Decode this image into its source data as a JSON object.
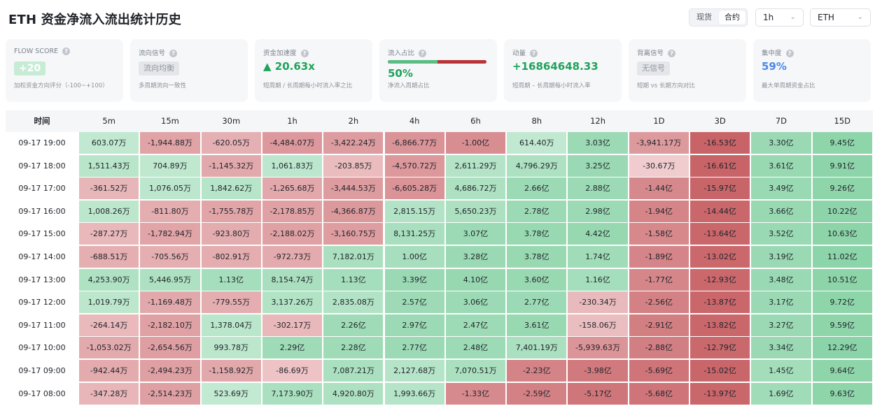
{
  "header": {
    "title": "ETH 资金净流入流出统计历史",
    "segment": [
      "现货",
      "合约"
    ],
    "active_segment": "合约",
    "timeframe": "1h",
    "symbol": "ETH"
  },
  "cards": [
    {
      "label": "FLOW SCORE",
      "value": "+20",
      "sub": "加权资金方向评分（-100~+100）"
    },
    {
      "label": "流向信号",
      "value": "流向均衡",
      "sub": "多周期流向一致性"
    },
    {
      "label": "资金加速度",
      "value": "▲ 20.63x",
      "sub": "短周期 / 长周期每小时流入率之比"
    },
    {
      "label": "流入占比",
      "value": "50%",
      "sub": "净流入周期占比",
      "bar_fraction": 0.5
    },
    {
      "label": "动量",
      "value": "+16864648.33",
      "sub": "短周期 – 长周期每小时流入率"
    },
    {
      "label": "背离信号",
      "value": "无信号",
      "sub": "短期 vs 长期方向对比"
    },
    {
      "label": "集中度",
      "value": "59%",
      "sub": "最大单周期资金占比"
    }
  ],
  "table": {
    "time_header": "时间",
    "columns": [
      "5m",
      "15m",
      "30m",
      "1h",
      "2h",
      "4h",
      "6h",
      "8h",
      "12h",
      "1D",
      "3D",
      "7D",
      "15D"
    ],
    "rows": [
      {
        "time": "09-17 19:00",
        "values": [
          "603.07万",
          "-1,944.88万",
          "-620.05万",
          "-4,484.07万",
          "-3,422.24万",
          "-6,866.77万",
          "-1.00亿",
          "614.40万",
          "3.03亿",
          "-3,941.17万",
          "-16.53亿",
          "3.30亿",
          "9.45亿"
        ]
      },
      {
        "time": "09-17 18:00",
        "values": [
          "1,511.43万",
          "704.89万",
          "-1,145.32万",
          "1,061.83万",
          "-203.85万",
          "-4,570.72万",
          "2,611.29万",
          "4,796.29万",
          "3.25亿",
          "-30.67万",
          "-16.61亿",
          "3.61亿",
          "9.91亿"
        ]
      },
      {
        "time": "09-17 17:00",
        "values": [
          "-361.52万",
          "1,076.05万",
          "1,842.62万",
          "-1,265.68万",
          "-3,444.53万",
          "-6,605.28万",
          "4,686.72万",
          "2.66亿",
          "2.88亿",
          "-1.44亿",
          "-15.97亿",
          "3.49亿",
          "9.26亿"
        ]
      },
      {
        "time": "09-17 16:00",
        "values": [
          "1,008.26万",
          "-811.80万",
          "-1,755.78万",
          "-2,178.85万",
          "-4,366.87万",
          "2,815.15万",
          "5,650.23万",
          "2.78亿",
          "2.98亿",
          "-1.94亿",
          "-14.44亿",
          "3.66亿",
          "10.22亿"
        ]
      },
      {
        "time": "09-17 15:00",
        "values": [
          "-287.27万",
          "-1,782.94万",
          "-923.80万",
          "-2,188.02万",
          "-3,160.75万",
          "8,131.25万",
          "3.07亿",
          "3.78亿",
          "4.42亿",
          "-1.58亿",
          "-13.64亿",
          "3.52亿",
          "10.63亿"
        ]
      },
      {
        "time": "09-17 14:00",
        "values": [
          "-688.51万",
          "-705.56万",
          "-802.91万",
          "-972.73万",
          "7,182.01万",
          "1.00亿",
          "3.28亿",
          "3.78亿",
          "1.74亿",
          "-1.89亿",
          "-13.02亿",
          "3.19亿",
          "11.02亿"
        ]
      },
      {
        "time": "09-17 13:00",
        "values": [
          "4,253.90万",
          "5,446.95万",
          "1.13亿",
          "8,154.74万",
          "1.13亿",
          "3.39亿",
          "4.10亿",
          "3.60亿",
          "1.16亿",
          "-1.77亿",
          "-12.93亿",
          "3.48亿",
          "10.51亿"
        ]
      },
      {
        "time": "09-17 12:00",
        "values": [
          "1,019.79万",
          "-1,169.48万",
          "-779.55万",
          "3,137.26万",
          "2,835.08万",
          "2.57亿",
          "3.06亿",
          "2.77亿",
          "-230.34万",
          "-2.56亿",
          "-13.87亿",
          "3.17亿",
          "9.72亿"
        ]
      },
      {
        "time": "09-17 11:00",
        "values": [
          "-264.14万",
          "-2,182.10万",
          "1,378.04万",
          "-302.17万",
          "2.26亿",
          "2.97亿",
          "2.47亿",
          "3.61亿",
          "-158.06万",
          "-2.91亿",
          "-13.82亿",
          "3.27亿",
          "9.59亿"
        ]
      },
      {
        "time": "09-17 10:00",
        "values": [
          "-1,053.02万",
          "-2,654.56万",
          "993.78万",
          "2.29亿",
          "2.28亿",
          "2.77亿",
          "2.48亿",
          "7,401.19万",
          "-5,939.63万",
          "-2.88亿",
          "-12.79亿",
          "3.34亿",
          "12.29亿"
        ]
      },
      {
        "time": "09-17 09:00",
        "values": [
          "-942.44万",
          "-2,494.23万",
          "-1,158.92万",
          "-86.69万",
          "7,087.21万",
          "2,127.68万",
          "7,070.51万",
          "-2.23亿",
          "-3.98亿",
          "-5.69亿",
          "-15.02亿",
          "1.45亿",
          "9.64亿"
        ]
      },
      {
        "time": "09-17 08:00",
        "values": [
          "-347.28万",
          "-2,514.23万",
          "523.69万",
          "7,173.90万",
          "4,920.80万",
          "1,993.66万",
          "-1.33亿",
          "-2.59亿",
          "-5.17亿",
          "-5.68亿",
          "-13.97亿",
          "1.69亿",
          "9.63亿"
        ]
      }
    ]
  }
}
